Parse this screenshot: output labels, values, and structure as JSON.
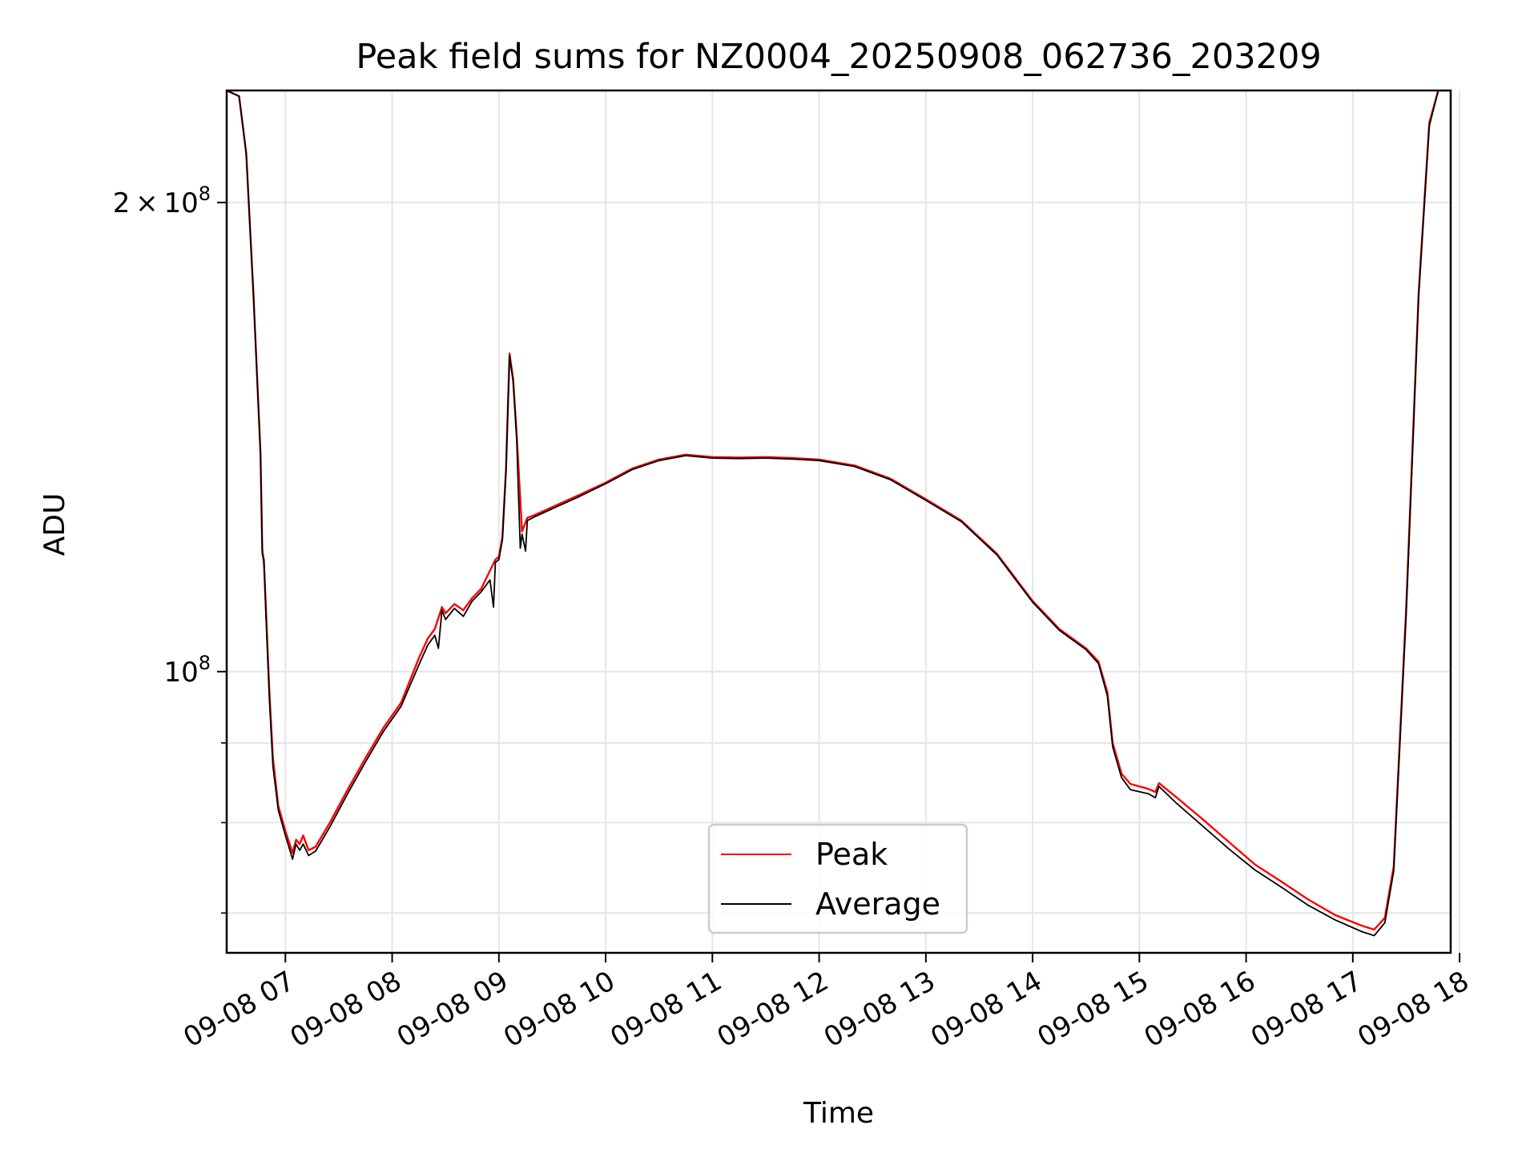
{
  "chart_data": {
    "type": "line",
    "title": "Peak field sums for NZ0004_20250908_062736_203209",
    "xlabel": "Time",
    "ylabel": "ADU",
    "y_scale": "log",
    "grid": true,
    "legend_position": "lower center",
    "xlim": [
      "2025-09-08 06:27",
      "2025-09-08 17:55"
    ],
    "ylim": [
      66000000,
      236000000
    ],
    "x_ticks": [
      {
        "value": "2025-09-08 07:00",
        "label": "09-08 07"
      },
      {
        "value": "2025-09-08 08:00",
        "label": "09-08 08"
      },
      {
        "value": "2025-09-08 09:00",
        "label": "09-08 09"
      },
      {
        "value": "2025-09-08 10:00",
        "label": "09-08 10"
      },
      {
        "value": "2025-09-08 11:00",
        "label": "09-08 11"
      },
      {
        "value": "2025-09-08 12:00",
        "label": "09-08 12"
      },
      {
        "value": "2025-09-08 13:00",
        "label": "09-08 13"
      },
      {
        "value": "2025-09-08 14:00",
        "label": "09-08 14"
      },
      {
        "value": "2025-09-08 15:00",
        "label": "09-08 15"
      },
      {
        "value": "2025-09-08 16:00",
        "label": "09-08 16"
      },
      {
        "value": "2025-09-08 17:00",
        "label": "09-08 17"
      },
      {
        "value": "2025-09-08 18:00",
        "label": "09-08 18"
      }
    ],
    "y_major_ticks": [
      {
        "value": 100000000,
        "mantissa": "",
        "exponent": "8"
      },
      {
        "value": 200000000,
        "mantissa": "2",
        "exponent": "8"
      }
    ],
    "y_minor_ticks": [
      70000000,
      80000000,
      90000000
    ],
    "series": [
      {
        "name": "Peak",
        "color": "#ff0000",
        "points": [
          [
            "2025-09-08 06:27",
            236000000
          ],
          [
            "2025-09-08 06:34",
            234000000
          ],
          [
            "2025-09-08 06:38",
            215000000
          ],
          [
            "2025-09-08 06:42",
            175000000
          ],
          [
            "2025-09-08 06:46",
            138000000
          ],
          [
            "2025-09-08 06:47",
            120000000
          ],
          [
            "2025-09-08 06:48",
            117000000
          ],
          [
            "2025-09-08 06:49",
            110000000
          ],
          [
            "2025-09-08 06:51",
            97000000
          ],
          [
            "2025-09-08 06:53",
            88000000
          ],
          [
            "2025-09-08 06:56",
            82000000
          ],
          [
            "2025-09-08 07:00",
            79000000
          ],
          [
            "2025-09-08 07:04",
            76500000
          ],
          [
            "2025-09-08 07:06",
            78000000
          ],
          [
            "2025-09-08 07:08",
            77500000
          ],
          [
            "2025-09-08 07:10",
            78500000
          ],
          [
            "2025-09-08 07:13",
            76800000
          ],
          [
            "2025-09-08 07:17",
            77200000
          ],
          [
            "2025-09-08 07:25",
            80000000
          ],
          [
            "2025-09-08 07:35",
            84000000
          ],
          [
            "2025-09-08 07:45",
            88000000
          ],
          [
            "2025-09-08 07:55",
            92000000
          ],
          [
            "2025-09-08 08:05",
            95500000
          ],
          [
            "2025-09-08 08:15",
            102000000
          ],
          [
            "2025-09-08 08:20",
            105000000
          ],
          [
            "2025-09-08 08:24",
            106500000
          ],
          [
            "2025-09-08 08:28",
            110000000
          ],
          [
            "2025-09-08 08:30",
            109000000
          ],
          [
            "2025-09-08 08:35",
            110500000
          ],
          [
            "2025-09-08 08:40",
            109500000
          ],
          [
            "2025-09-08 08:45",
            111500000
          ],
          [
            "2025-09-08 08:50",
            113000000
          ],
          [
            "2025-09-08 08:58",
            118000000
          ],
          [
            "2025-09-08 09:00",
            118500000
          ],
          [
            "2025-09-08 09:02",
            122000000
          ],
          [
            "2025-09-08 09:04",
            135000000
          ],
          [
            "2025-09-08 09:06",
            160000000
          ],
          [
            "2025-09-08 09:08",
            154000000
          ],
          [
            "2025-09-08 09:10",
            142000000
          ],
          [
            "2025-09-08 09:13",
            123000000
          ],
          [
            "2025-09-08 09:16",
            125500000
          ],
          [
            "2025-09-08 09:20",
            126000000
          ],
          [
            "2025-09-08 09:30",
            127500000
          ],
          [
            "2025-09-08 09:45",
            129800000
          ],
          [
            "2025-09-08 10:00",
            132200000
          ],
          [
            "2025-09-08 10:15",
            135000000
          ],
          [
            "2025-09-08 10:30",
            136800000
          ],
          [
            "2025-09-08 10:45",
            137800000
          ],
          [
            "2025-09-08 11:00",
            137300000
          ],
          [
            "2025-09-08 11:15",
            137200000
          ],
          [
            "2025-09-08 11:30",
            137300000
          ],
          [
            "2025-09-08 11:45",
            137100000
          ],
          [
            "2025-09-08 12:00",
            136800000
          ],
          [
            "2025-09-08 12:20",
            135600000
          ],
          [
            "2025-09-08 12:40",
            133000000
          ],
          [
            "2025-09-08 13:00",
            129000000
          ],
          [
            "2025-09-08 13:20",
            125000000
          ],
          [
            "2025-09-08 13:40",
            119000000
          ],
          [
            "2025-09-08 14:00",
            111000000
          ],
          [
            "2025-09-08 14:15",
            106500000
          ],
          [
            "2025-09-08 14:30",
            103500000
          ],
          [
            "2025-09-08 14:37",
            101500000
          ],
          [
            "2025-09-08 14:42",
            97000000
          ],
          [
            "2025-09-08 14:45",
            90000000
          ],
          [
            "2025-09-08 14:50",
            86000000
          ],
          [
            "2025-09-08 14:55",
            84700000
          ],
          [
            "2025-09-08 15:05",
            84100000
          ],
          [
            "2025-09-08 15:09",
            83700000
          ],
          [
            "2025-09-08 15:11",
            84800000
          ],
          [
            "2025-09-08 15:20",
            83200000
          ],
          [
            "2025-09-08 15:35",
            80500000
          ],
          [
            "2025-09-08 15:50",
            77800000
          ],
          [
            "2025-09-08 16:05",
            75200000
          ],
          [
            "2025-09-08 16:20",
            73300000
          ],
          [
            "2025-09-08 16:35",
            71400000
          ],
          [
            "2025-09-08 16:50",
            69800000
          ],
          [
            "2025-09-08 17:05",
            68700000
          ],
          [
            "2025-09-08 17:12",
            68300000
          ],
          [
            "2025-09-08 17:18",
            69500000
          ],
          [
            "2025-09-08 17:23",
            75000000
          ],
          [
            "2025-09-08 17:30",
            110000000
          ],
          [
            "2025-09-08 17:37",
            175000000
          ],
          [
            "2025-09-08 17:43",
            225000000
          ],
          [
            "2025-09-08 17:48",
            236000000
          ],
          [
            "2025-09-08 17:55",
            236000000
          ]
        ]
      },
      {
        "name": "Average",
        "color": "#000000",
        "points": [
          [
            "2025-09-08 06:27",
            236000000
          ],
          [
            "2025-09-08 06:34",
            234000000
          ],
          [
            "2025-09-08 06:38",
            215000000
          ],
          [
            "2025-09-08 06:42",
            175000000
          ],
          [
            "2025-09-08 06:46",
            138000000
          ],
          [
            "2025-09-08 06:47",
            119000000
          ],
          [
            "2025-09-08 06:48",
            118000000
          ],
          [
            "2025-09-08 06:49",
            109000000
          ],
          [
            "2025-09-08 06:51",
            96000000
          ],
          [
            "2025-09-08 06:53",
            87000000
          ],
          [
            "2025-09-08 06:56",
            81500000
          ],
          [
            "2025-09-08 07:00",
            78500000
          ],
          [
            "2025-09-08 07:04",
            75800000
          ],
          [
            "2025-09-08 07:06",
            77500000
          ],
          [
            "2025-09-08 07:08",
            76800000
          ],
          [
            "2025-09-08 07:10",
            77500000
          ],
          [
            "2025-09-08 07:13",
            76200000
          ],
          [
            "2025-09-08 07:17",
            76700000
          ],
          [
            "2025-09-08 07:25",
            79500000
          ],
          [
            "2025-09-08 07:35",
            83500000
          ],
          [
            "2025-09-08 07:45",
            87500000
          ],
          [
            "2025-09-08 07:55",
            91500000
          ],
          [
            "2025-09-08 08:05",
            95000000
          ],
          [
            "2025-09-08 08:15",
            101000000
          ],
          [
            "2025-09-08 08:20",
            104000000
          ],
          [
            "2025-09-08 08:24",
            105500000
          ],
          [
            "2025-09-08 08:26",
            103500000
          ],
          [
            "2025-09-08 08:28",
            109500000
          ],
          [
            "2025-09-08 08:30",
            108000000
          ],
          [
            "2025-09-08 08:35",
            109800000
          ],
          [
            "2025-09-08 08:40",
            108500000
          ],
          [
            "2025-09-08 08:45",
            111000000
          ],
          [
            "2025-09-08 08:50",
            112500000
          ],
          [
            "2025-09-08 08:55",
            114500000
          ],
          [
            "2025-09-08 08:57",
            110000000
          ],
          [
            "2025-09-08 08:58",
            117500000
          ],
          [
            "2025-09-08 09:00",
            118000000
          ],
          [
            "2025-09-08 09:02",
            121500000
          ],
          [
            "2025-09-08 09:04",
            134500000
          ],
          [
            "2025-09-08 09:06",
            159500000
          ],
          [
            "2025-09-08 09:08",
            153500000
          ],
          [
            "2025-09-08 09:10",
            141000000
          ],
          [
            "2025-09-08 09:12",
            120000000
          ],
          [
            "2025-09-08 09:13",
            122500000
          ],
          [
            "2025-09-08 09:15",
            119500000
          ],
          [
            "2025-09-08 09:16",
            125000000
          ],
          [
            "2025-09-08 09:20",
            125700000
          ],
          [
            "2025-09-08 09:30",
            127200000
          ],
          [
            "2025-09-08 09:45",
            129500000
          ],
          [
            "2025-09-08 10:00",
            132000000
          ],
          [
            "2025-09-08 10:15",
            134800000
          ],
          [
            "2025-09-08 10:30",
            136600000
          ],
          [
            "2025-09-08 10:45",
            137600000
          ],
          [
            "2025-09-08 11:00",
            137100000
          ],
          [
            "2025-09-08 11:15",
            137000000
          ],
          [
            "2025-09-08 11:30",
            137100000
          ],
          [
            "2025-09-08 11:45",
            136900000
          ],
          [
            "2025-09-08 12:00",
            136600000
          ],
          [
            "2025-09-08 12:20",
            135400000
          ],
          [
            "2025-09-08 12:40",
            132800000
          ],
          [
            "2025-09-08 13:00",
            128800000
          ],
          [
            "2025-09-08 13:20",
            124800000
          ],
          [
            "2025-09-08 13:40",
            118800000
          ],
          [
            "2025-09-08 14:00",
            110800000
          ],
          [
            "2025-09-08 14:15",
            106300000
          ],
          [
            "2025-09-08 14:30",
            103300000
          ],
          [
            "2025-09-08 14:37",
            101200000
          ],
          [
            "2025-09-08 14:42",
            96500000
          ],
          [
            "2025-09-08 14:45",
            89500000
          ],
          [
            "2025-09-08 14:50",
            85500000
          ],
          [
            "2025-09-08 14:55",
            84000000
          ],
          [
            "2025-09-08 15:05",
            83500000
          ],
          [
            "2025-09-08 15:09",
            83000000
          ],
          [
            "2025-09-08 15:11",
            84400000
          ],
          [
            "2025-09-08 15:20",
            82500000
          ],
          [
            "2025-09-08 15:35",
            79700000
          ],
          [
            "2025-09-08 15:50",
            77000000
          ],
          [
            "2025-09-08 16:05",
            74600000
          ],
          [
            "2025-09-08 16:20",
            72700000
          ],
          [
            "2025-09-08 16:35",
            70800000
          ],
          [
            "2025-09-08 16:50",
            69300000
          ],
          [
            "2025-09-08 17:05",
            68100000
          ],
          [
            "2025-09-08 17:12",
            67700000
          ],
          [
            "2025-09-08 17:18",
            69000000
          ],
          [
            "2025-09-08 17:23",
            74500000
          ],
          [
            "2025-09-08 17:30",
            109000000
          ],
          [
            "2025-09-08 17:37",
            174000000
          ],
          [
            "2025-09-08 17:43",
            224000000
          ],
          [
            "2025-09-08 17:48",
            236000000
          ],
          [
            "2025-09-08 17:55",
            236000000
          ]
        ]
      }
    ]
  }
}
